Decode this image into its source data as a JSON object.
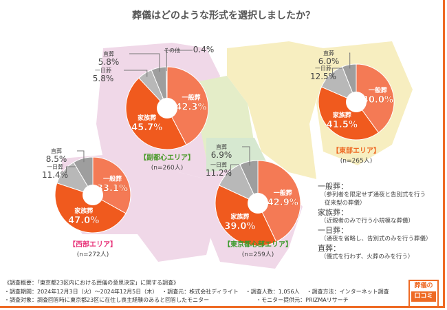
{
  "title": "葬儀はどのような形式を選択しましたか？",
  "colors": {
    "一般葬": "#f47a55",
    "家族葬": "#f05a1e",
    "一日葬": "#b8b8b8",
    "直葬": "#9e9e9e",
    "その他": "#6f6f6f",
    "accent": "#ee6a24"
  },
  "chart_data": [
    {
      "type": "pie",
      "area": "【副都心エリア】",
      "n": "(n=260人)",
      "area_color": "#4a9a2a",
      "slices": [
        {
          "label": "一般葬",
          "value": 42.3
        },
        {
          "label": "家族葬",
          "value": 45.7
        },
        {
          "label": "一日葬",
          "value": 5.8
        },
        {
          "label": "直葬",
          "value": 5.8
        },
        {
          "label": "その他",
          "value": 0.4
        }
      ]
    },
    {
      "type": "pie",
      "area": "【東部エリア】",
      "n": "(n=265人)",
      "area_color": "#ee6a24",
      "slices": [
        {
          "label": "一般葬",
          "value": 40.0
        },
        {
          "label": "家族葬",
          "value": 41.5
        },
        {
          "label": "一日葬",
          "value": 12.5
        },
        {
          "label": "直葬",
          "value": 6.0
        }
      ]
    },
    {
      "type": "pie",
      "area": "【西部エリア】",
      "n": "(n=272人)",
      "area_color": "#e8357a",
      "slices": [
        {
          "label": "一般葬",
          "value": 33.1
        },
        {
          "label": "家族葬",
          "value": 47.0
        },
        {
          "label": "一日葬",
          "value": 11.4
        },
        {
          "label": "直葬",
          "value": 8.5
        }
      ]
    },
    {
      "type": "pie",
      "area": "【東京都心部エリア】",
      "n": "(n=259人)",
      "area_color": "#3a9a2a",
      "slices": [
        {
          "label": "一般葬",
          "value": 42.9
        },
        {
          "label": "家族葬",
          "value": 39.0
        },
        {
          "label": "一日葬",
          "value": 11.2
        },
        {
          "label": "直葬",
          "value": 6.9
        }
      ]
    }
  ],
  "legend": [
    {
      "term": "一般葬：",
      "desc": [
        "（参列者を限定せず通夜と告別式を行う",
        "従来型の葬儀）"
      ]
    },
    {
      "term": "家族葬：",
      "desc": [
        "（近親者のみで行う小規模な葬儀）"
      ]
    },
    {
      "term": "一日葬：",
      "desc": [
        "（通夜を省略し、告別式のみを行う葬儀）"
      ]
    },
    {
      "term": "直葬：",
      "desc": [
        "（儀式を行わず、火葬のみを行う）"
      ]
    }
  ],
  "footer": {
    "heading": "《調査概要：「東京都23区内における葬儀の意思決定」に関する調査》",
    "period": "・調査期間：2024年12月3日（火）～2024年12月5日（木）",
    "source": "・調査元：株式会社ディライト",
    "count": "・調査人数：1,056人",
    "method": "・調査方法：インターネット調査",
    "target": "・調査対象：調査回答時に東京都23区に在住し喪主経験のあると回答したモニター",
    "provider": "・モニター提供元：PRIZMAリサーチ"
  },
  "logo": {
    "top": "葬儀の",
    "bottom": "口コミ"
  }
}
